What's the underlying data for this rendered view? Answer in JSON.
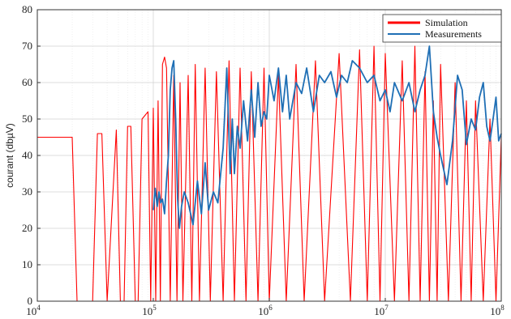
{
  "chart_data": {
    "type": "line",
    "title": "",
    "xlabel": "",
    "ylabel": "courant (dbµV)",
    "x_scale": "log",
    "xlim": [
      10000,
      100000000
    ],
    "ylim": [
      0,
      80
    ],
    "x_ticks": [
      10000,
      100000,
      1000000,
      10000000,
      100000000
    ],
    "x_tick_labels": [
      {
        "base": "10",
        "exp": "4"
      },
      {
        "base": "10",
        "exp": "5"
      },
      {
        "base": "10",
        "exp": "6"
      },
      {
        "base": "10",
        "exp": "7"
      },
      {
        "base": "10",
        "exp": "8"
      }
    ],
    "y_ticks": [
      0,
      10,
      20,
      30,
      40,
      50,
      60,
      70,
      80
    ],
    "grid": true,
    "legend_position": "top-right",
    "series": [
      {
        "name": "Simulation",
        "color": "#ff0000",
        "x": [
          10000,
          20000,
          22000,
          30000,
          33000,
          36000,
          40000,
          48000,
          52000,
          56000,
          60000,
          64000,
          70000,
          74000,
          80000,
          90000,
          95000,
          100000,
          105000,
          110000,
          115000,
          120000,
          125000,
          130000,
          140000,
          150000,
          160000,
          170000,
          180000,
          200000,
          215000,
          230000,
          250000,
          280000,
          310000,
          350000,
          400000,
          450000,
          500000,
          560000,
          630000,
          700000,
          800000,
          900000,
          1000000,
          1200000,
          1400000,
          1700000,
          2000000,
          2500000,
          3000000,
          4000000,
          5000000,
          6000000,
          7000000,
          8000000,
          9000000,
          10000000,
          12000000,
          14000000,
          16000000,
          18000000,
          20000000,
          22000000,
          24000000,
          26000000,
          28000000,
          30000000,
          35000000,
          40000000,
          45000000,
          50000000,
          55000000,
          60000000,
          70000000,
          80000000,
          90000000,
          100000000
        ],
        "values": [
          45,
          45,
          0,
          0,
          46,
          46,
          0,
          47,
          0,
          0,
          48,
          48,
          0,
          0,
          50,
          52,
          0,
          53,
          0,
          55,
          0,
          65,
          67,
          64,
          0,
          62,
          0,
          60,
          0,
          62,
          0,
          65,
          0,
          64,
          0,
          63,
          0,
          66,
          0,
          64,
          0,
          63,
          0,
          64,
          0,
          62,
          0,
          65,
          0,
          66,
          0,
          68,
          0,
          69,
          0,
          70,
          0,
          68,
          0,
          66,
          0,
          70,
          0,
          63,
          0,
          55,
          0,
          65,
          0,
          60,
          0,
          55,
          0,
          55,
          0,
          50,
          0,
          45
        ]
      },
      {
        "name": "Measurements",
        "color": "#1f6fb5",
        "x": [
          100000,
          104000,
          108000,
          112000,
          116000,
          120000,
          125000,
          130000,
          135000,
          140000,
          145000,
          150000,
          156000,
          162000,
          168000,
          175000,
          185000,
          200000,
          220000,
          240000,
          260000,
          280000,
          300000,
          330000,
          360000,
          400000,
          430000,
          460000,
          480000,
          500000,
          530000,
          560000,
          600000,
          650000,
          700000,
          750000,
          800000,
          850000,
          900000,
          950000,
          1000000,
          1100000,
          1200000,
          1300000,
          1400000,
          1500000,
          1700000,
          1900000,
          2100000,
          2400000,
          2700000,
          3000000,
          3400000,
          3800000,
          4200000,
          4700000,
          5200000,
          6000000,
          7000000,
          8000000,
          9000000,
          10000000,
          11000000,
          12000000,
          14000000,
          16000000,
          18000000,
          20000000,
          22000000,
          24000000,
          26000000,
          28000000,
          30000000,
          34000000,
          38000000,
          42000000,
          46000000,
          50000000,
          55000000,
          60000000,
          65000000,
          70000000,
          75000000,
          80000000,
          85000000,
          90000000,
          95000000,
          100000000
        ],
        "values": [
          25,
          31,
          26,
          30,
          27,
          28,
          24,
          33,
          40,
          58,
          64,
          66,
          50,
          28,
          20,
          26,
          30,
          27,
          21,
          33,
          24,
          38,
          25,
          30,
          27,
          42,
          64,
          35,
          50,
          35,
          48,
          42,
          55,
          44,
          58,
          45,
          60,
          48,
          52,
          50,
          62,
          55,
          64,
          52,
          62,
          50,
          60,
          57,
          64,
          52,
          62,
          60,
          63,
          56,
          62,
          60,
          66,
          64,
          60,
          62,
          55,
          58,
          52,
          60,
          55,
          60,
          52,
          58,
          62,
          70,
          52,
          45,
          40,
          32,
          44,
          62,
          58,
          43,
          50,
          47,
          56,
          60,
          48,
          44,
          50,
          56,
          44,
          46
        ]
      }
    ]
  }
}
